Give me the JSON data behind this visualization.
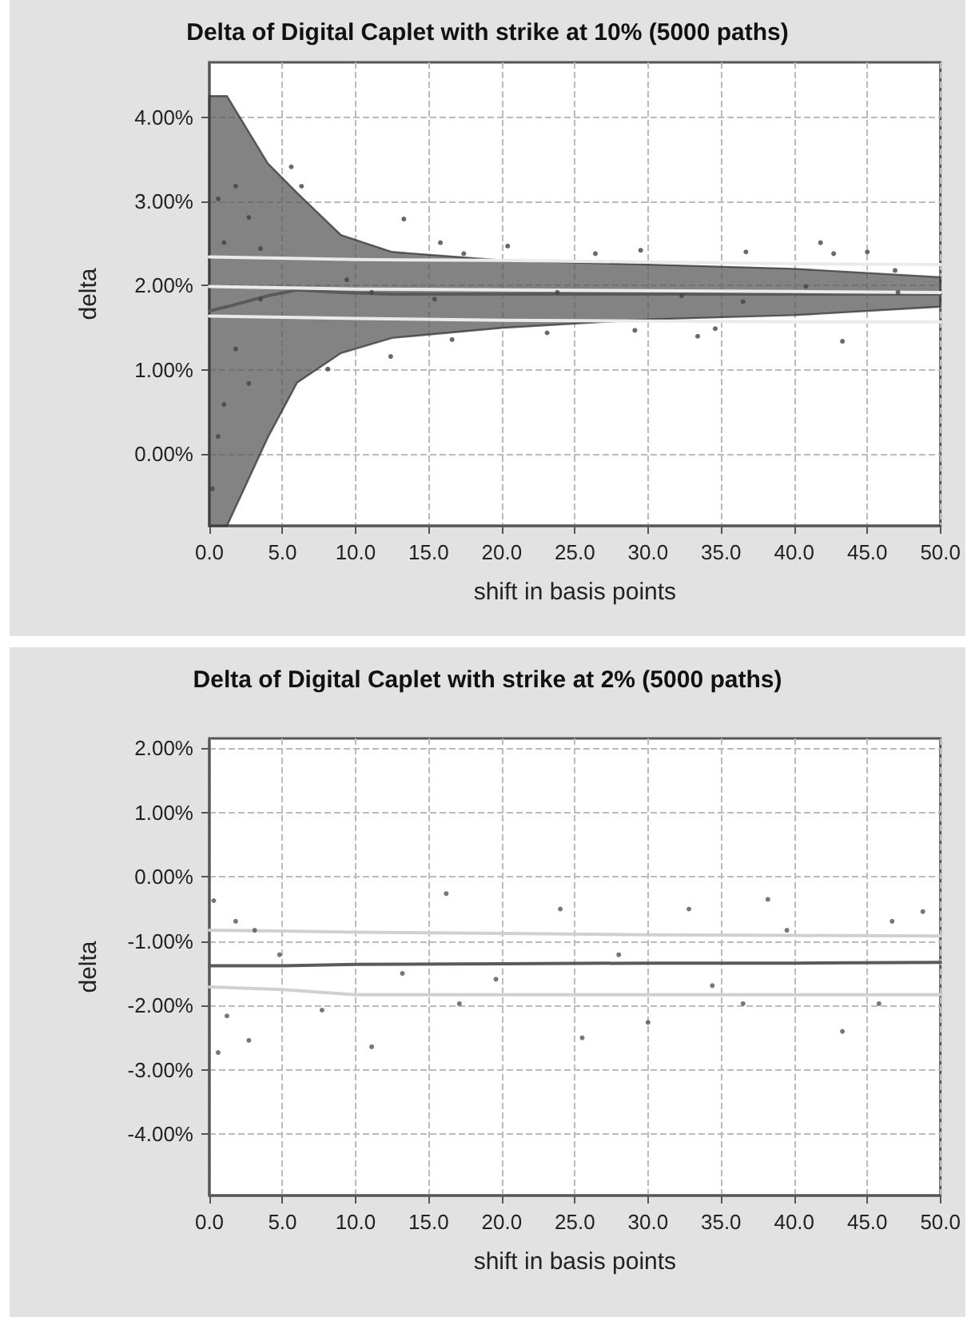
{
  "chart_data": [
    {
      "type": "line",
      "title": "Delta of Digital Caplet with strike at 10% (5000 paths)",
      "xlabel": "shift in basis points",
      "ylabel": "delta",
      "xlim": [
        0,
        50
      ],
      "xticks": [
        {
          "value": 0,
          "label": "0.0"
        },
        {
          "value": 5,
          "label": "5.0"
        },
        {
          "value": 10,
          "label": "10.0"
        },
        {
          "value": 15,
          "label": "15.0"
        },
        {
          "value": 20,
          "label": "20.0"
        },
        {
          "value": 25,
          "label": "25.0"
        },
        {
          "value": 30,
          "label": "30.0"
        },
        {
          "value": 35,
          "label": "35.0"
        },
        {
          "value": 40,
          "label": "40.0"
        },
        {
          "value": 45,
          "label": "45.0"
        },
        {
          "value": 50,
          "label": "50.0"
        }
      ],
      "ylim": [
        -0.85,
        4.65
      ],
      "yticks": [
        {
          "value": 0,
          "label": "0.00%"
        },
        {
          "value": 1,
          "label": "1.00%"
        },
        {
          "value": 2,
          "label": "2.00%"
        },
        {
          "value": 3,
          "label": "3.00%"
        },
        {
          "value": 4,
          "label": "4.00%"
        }
      ],
      "grid": true,
      "series": [
        {
          "color": "#5a5a5a",
          "marker": "none",
          "x": [
            0,
            1.2,
            4,
            6,
            9,
            12.5,
            20,
            30,
            40,
            50
          ],
          "values": [
            1.7,
            1.75,
            1.88,
            1.95,
            1.92,
            1.9,
            1.9,
            1.9,
            1.9,
            1.9
          ],
          "lower": [
            -0.85,
            -0.85,
            0.2,
            0.85,
            1.2,
            1.38,
            1.5,
            1.6,
            1.65,
            1.75
          ],
          "upper": [
            4.25,
            4.25,
            3.45,
            3.1,
            2.6,
            2.4,
            2.3,
            2.25,
            2.2,
            2.1
          ]
        },
        {
          "type": "line",
          "color": "#ebebeb",
          "marker": "none",
          "x": [
            0,
            10,
            20,
            30,
            40,
            50
          ],
          "values": [
            2.34,
            2.31,
            2.3,
            2.28,
            2.26,
            2.25
          ]
        },
        {
          "type": "line",
          "color": "#ebebeb",
          "marker": "none",
          "x": [
            0,
            10,
            20,
            30,
            40,
            50
          ],
          "values": [
            1.99,
            1.96,
            1.95,
            1.94,
            1.93,
            1.92
          ]
        },
        {
          "type": "line",
          "color": "#ebebeb",
          "marker": "none",
          "x": [
            0,
            10,
            20,
            30,
            40,
            50
          ],
          "values": [
            1.64,
            1.61,
            1.59,
            1.58,
            1.57,
            1.57
          ]
        },
        {
          "type": "scatter",
          "color": "#444444",
          "marker": "circle",
          "x": [
            13.3,
            15.8,
            17.4,
            20.4,
            26.4,
            29.5,
            36.7,
            41.8,
            42.7,
            45,
            46.9,
            23.1,
            16.6,
            12.4,
            29.1,
            33.4,
            34.6,
            43.3,
            8.1,
            5.6,
            6.3,
            1.0,
            0.6,
            1.0,
            0.2,
            2.7,
            1.8,
            3.5,
            9.4,
            11.1,
            15.4,
            23.8,
            32.3,
            36.5,
            40.8,
            47.1,
            1.8,
            2.7,
            0.6,
            3.5
          ],
          "values": [
            2.79,
            2.51,
            2.38,
            2.47,
            2.38,
            2.42,
            2.4,
            2.51,
            2.38,
            2.4,
            2.18,
            1.44,
            1.36,
            1.16,
            1.47,
            1.4,
            1.49,
            1.34,
            1.01,
            3.41,
            3.18,
            2.51,
            3.03,
            0.59,
            -0.41,
            0.84,
            1.25,
            1.84,
            2.07,
            1.92,
            1.84,
            1.92,
            1.88,
            1.81,
            1.99,
            1.92,
            3.18,
            2.81,
            0.21,
            2.44
          ]
        }
      ]
    },
    {
      "type": "line",
      "title": "Delta of Digital Caplet with strike at 2% (5000 paths)",
      "xlabel": "shift in basis points",
      "ylabel": "delta",
      "xlim": [
        0,
        50
      ],
      "xticks": [
        {
          "value": 0,
          "label": "0.0"
        },
        {
          "value": 5,
          "label": "5.0"
        },
        {
          "value": 10,
          "label": "10.0"
        },
        {
          "value": 15,
          "label": "15.0"
        },
        {
          "value": 20,
          "label": "20.0"
        },
        {
          "value": 25,
          "label": "25.0"
        },
        {
          "value": 30,
          "label": "30.0"
        },
        {
          "value": 35,
          "label": "35.0"
        },
        {
          "value": 40,
          "label": "40.0"
        },
        {
          "value": 45,
          "label": "45.0"
        },
        {
          "value": 50,
          "label": "50.0"
        }
      ],
      "ylim": [
        -4.95,
        2.15
      ],
      "yticks": [
        {
          "value": -4,
          "label": "-4.00%"
        },
        {
          "value": -3,
          "label": "-3.00%"
        },
        {
          "value": -2,
          "label": "-2.00%"
        },
        {
          "value": -1,
          "label": "-1.00%"
        },
        {
          "value": 0,
          "label": "0.00%"
        },
        {
          "value": 1,
          "label": "1.00%"
        },
        {
          "value": 2,
          "label": "2.00%"
        }
      ],
      "grid": true,
      "series": [
        {
          "type": "line",
          "color": "#d0d0d0",
          "marker": "none",
          "x": [
            0,
            5,
            10,
            20,
            30,
            40,
            50
          ],
          "values": [
            -0.83,
            -0.84,
            -0.86,
            -0.88,
            -0.9,
            -0.91,
            -0.92
          ]
        },
        {
          "type": "line",
          "color": "#d0d0d0",
          "marker": "none",
          "x": [
            0,
            5,
            10,
            20,
            30,
            40,
            50
          ],
          "values": [
            -1.71,
            -1.75,
            -1.83,
            -1.83,
            -1.83,
            -1.83,
            -1.83
          ]
        },
        {
          "color": "#5a5a5a",
          "marker": "none",
          "x": [
            0,
            5,
            10,
            20,
            30,
            40,
            50
          ],
          "values": [
            -1.38,
            -1.38,
            -1.36,
            -1.35,
            -1.34,
            -1.34,
            -1.33
          ]
        },
        {
          "type": "scatter",
          "color": "#555555",
          "marker": "circle",
          "x": [
            0.3,
            0.6,
            1.2,
            2.7,
            1.8,
            3.1,
            7.7,
            11.1,
            16.2,
            17.1,
            24,
            25.5,
            30,
            32.8,
            38.2,
            39.5,
            43.3,
            46.7,
            48.8,
            36.5,
            19.6,
            13.2,
            28,
            4.8,
            34.4,
            45.8
          ],
          "values": [
            -0.37,
            -2.73,
            -2.16,
            -2.54,
            -0.69,
            -0.83,
            -2.07,
            -2.64,
            -0.26,
            -1.97,
            -0.5,
            -2.5,
            -2.26,
            -0.5,
            -0.35,
            -0.83,
            -2.4,
            -0.69,
            -0.54,
            -1.97,
            -1.59,
            -1.5,
            -1.21,
            -1.21,
            -1.69,
            -1.97
          ]
        }
      ]
    }
  ]
}
